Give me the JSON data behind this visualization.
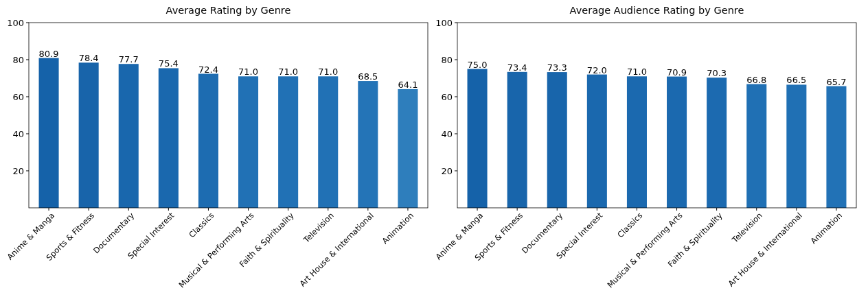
{
  "chart_data": [
    {
      "type": "bar",
      "title": "Average Rating by Genre",
      "categories": [
        "Anime & Manga",
        "Sports & Fitness",
        "Documentary",
        "Special Interest",
        "Classics",
        "Musical & Performing Arts",
        "Faith & Spirituality",
        "Television",
        "Art House & International",
        "Animation"
      ],
      "values": [
        80.9,
        78.4,
        77.7,
        75.4,
        72.4,
        71.0,
        71.0,
        71.0,
        68.5,
        64.1
      ],
      "colors": [
        "#1562a9",
        "#1864aa",
        "#1967ad",
        "#1a68ae",
        "#1d6cb1",
        "#2171b5",
        "#2171b5",
        "#2171b5",
        "#2474b7",
        "#2e7ebc"
      ],
      "ylim": [
        0,
        100
      ],
      "yticks": [
        20,
        40,
        60,
        80,
        100
      ],
      "value_labels": [
        "80.9",
        "78.4",
        "77.7",
        "75.4",
        "72.4",
        "71.0",
        "71.0",
        "71.0",
        "68.5",
        "64.1"
      ]
    },
    {
      "type": "bar",
      "title": "Average Audience Rating by Genre",
      "categories": [
        "Anime & Manga",
        "Sports & Fitness",
        "Documentary",
        "Special Interest",
        "Classics",
        "Musical & Performing Arts",
        "Faith & Spirituality",
        "Television",
        "Art House & International",
        "Animation"
      ],
      "values": [
        75.0,
        73.4,
        73.3,
        72.0,
        71.0,
        70.9,
        70.3,
        66.8,
        66.5,
        65.7
      ],
      "colors": [
        "#1562a9",
        "#1865ab",
        "#1865ab",
        "#1a68ae",
        "#1b69af",
        "#1b69af",
        "#1c6ab0",
        "#2070b4",
        "#2070b4",
        "#2272b6"
      ],
      "ylim": [
        0,
        100
      ],
      "yticks": [
        20,
        40,
        60,
        80,
        100
      ],
      "value_labels": [
        "75.0",
        "73.4",
        "73.3",
        "72.0",
        "71.0",
        "70.9",
        "70.3",
        "66.8",
        "66.5",
        "65.7"
      ]
    }
  ]
}
